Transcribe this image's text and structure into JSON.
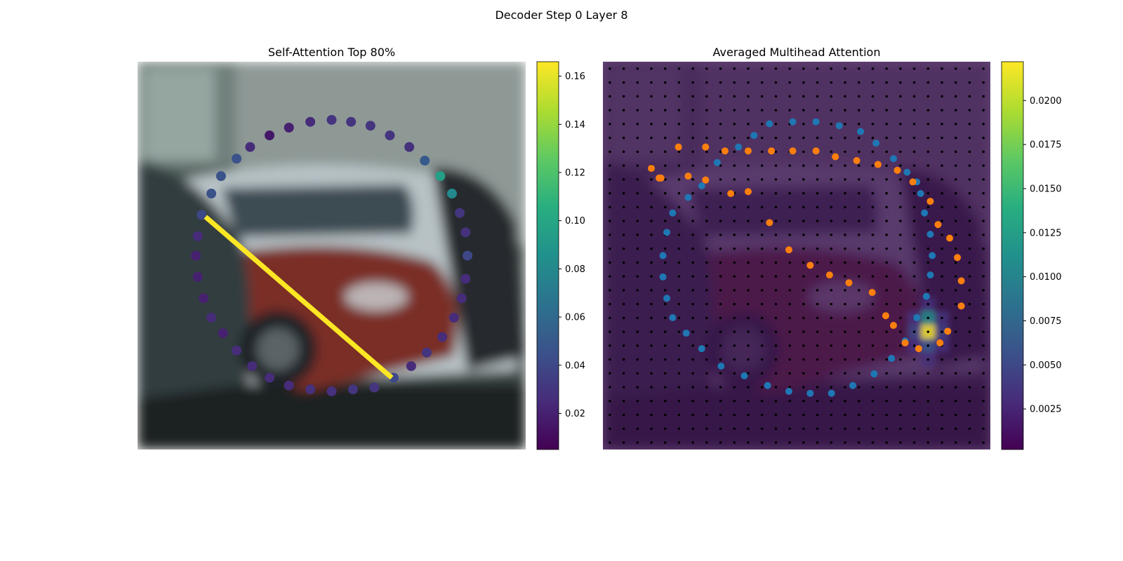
{
  "figure": {
    "title": "Decoder Step 0 Layer 8"
  },
  "chart_data": [
    {
      "type": "scatter",
      "title": "Self-Attention Top 80%",
      "background": "blurred photo of parked cars (red and white car, dark car at left)",
      "colormap": "viridis",
      "colorbar": {
        "min": 0.005,
        "max": 0.166,
        "ticks": [
          "0.02",
          "0.04",
          "0.06",
          "0.08",
          "0.10",
          "0.12",
          "0.14",
          "0.16"
        ],
        "tick_values": [
          0.02,
          0.04,
          0.06,
          0.08,
          0.1,
          0.12,
          0.14,
          0.16
        ]
      },
      "points": [
        {
          "x": 0.5,
          "y": 0.15,
          "v": 0.03
        },
        {
          "x": 0.55,
          "y": 0.155,
          "v": 0.03
        },
        {
          "x": 0.6,
          "y": 0.165,
          "v": 0.03
        },
        {
          "x": 0.65,
          "y": 0.19,
          "v": 0.03
        },
        {
          "x": 0.7,
          "y": 0.22,
          "v": 0.028
        },
        {
          "x": 0.74,
          "y": 0.255,
          "v": 0.05
        },
        {
          "x": 0.78,
          "y": 0.295,
          "v": 0.095
        },
        {
          "x": 0.81,
          "y": 0.34,
          "v": 0.08
        },
        {
          "x": 0.83,
          "y": 0.39,
          "v": 0.03
        },
        {
          "x": 0.845,
          "y": 0.44,
          "v": 0.028
        },
        {
          "x": 0.85,
          "y": 0.5,
          "v": 0.04
        },
        {
          "x": 0.845,
          "y": 0.56,
          "v": 0.025
        },
        {
          "x": 0.835,
          "y": 0.61,
          "v": 0.025
        },
        {
          "x": 0.815,
          "y": 0.66,
          "v": 0.025
        },
        {
          "x": 0.785,
          "y": 0.71,
          "v": 0.025
        },
        {
          "x": 0.745,
          "y": 0.75,
          "v": 0.03
        },
        {
          "x": 0.705,
          "y": 0.785,
          "v": 0.025
        },
        {
          "x": 0.66,
          "y": 0.815,
          "v": 0.04
        },
        {
          "x": 0.61,
          "y": 0.84,
          "v": 0.03
        },
        {
          "x": 0.555,
          "y": 0.845,
          "v": 0.03
        },
        {
          "x": 0.5,
          "y": 0.85,
          "v": 0.028
        },
        {
          "x": 0.445,
          "y": 0.845,
          "v": 0.028
        },
        {
          "x": 0.39,
          "y": 0.835,
          "v": 0.025
        },
        {
          "x": 0.34,
          "y": 0.815,
          "v": 0.025
        },
        {
          "x": 0.295,
          "y": 0.785,
          "v": 0.025
        },
        {
          "x": 0.255,
          "y": 0.745,
          "v": 0.025
        },
        {
          "x": 0.22,
          "y": 0.7,
          "v": 0.02
        },
        {
          "x": 0.19,
          "y": 0.66,
          "v": 0.025
        },
        {
          "x": 0.17,
          "y": 0.61,
          "v": 0.02
        },
        {
          "x": 0.155,
          "y": 0.555,
          "v": 0.02
        },
        {
          "x": 0.15,
          "y": 0.5,
          "v": 0.02
        },
        {
          "x": 0.155,
          "y": 0.45,
          "v": 0.025
        },
        {
          "x": 0.165,
          "y": 0.395,
          "v": 0.04
        },
        {
          "x": 0.19,
          "y": 0.34,
          "v": 0.045
        },
        {
          "x": 0.215,
          "y": 0.295,
          "v": 0.045
        },
        {
          "x": 0.255,
          "y": 0.25,
          "v": 0.045
        },
        {
          "x": 0.29,
          "y": 0.22,
          "v": 0.025
        },
        {
          "x": 0.34,
          "y": 0.19,
          "v": 0.015
        },
        {
          "x": 0.39,
          "y": 0.17,
          "v": 0.02
        },
        {
          "x": 0.445,
          "y": 0.155,
          "v": 0.025
        }
      ],
      "segment": {
        "from": [
          0.175,
          0.4
        ],
        "to": [
          0.655,
          0.815
        ],
        "v": 0.166
      }
    },
    {
      "type": "heatmap",
      "title": "Averaged Multihead Attention",
      "colormap": "viridis",
      "colorbar": {
        "min": 0.0002,
        "max": 0.0222,
        "ticks": [
          "0.0025",
          "0.0050",
          "0.0075",
          "0.0100",
          "0.0125",
          "0.0150",
          "0.0175",
          "0.0200"
        ],
        "tick_values": [
          0.0025,
          0.005,
          0.0075,
          0.01,
          0.0125,
          0.015,
          0.0175,
          0.02
        ]
      },
      "grid": {
        "cols": 28,
        "rows": 28
      },
      "hot_cells": [
        {
          "col": 23,
          "row": 18,
          "v": 0.011
        },
        {
          "col": 23,
          "row": 19,
          "v": 0.022
        },
        {
          "col": 22,
          "row": 19,
          "v": 0.005
        },
        {
          "col": 24,
          "row": 19,
          "v": 0.0045
        },
        {
          "col": 23,
          "row": 20,
          "v": 0.006
        },
        {
          "col": 22,
          "row": 18,
          "v": 0.0035
        },
        {
          "col": 24,
          "row": 18,
          "v": 0.0035
        },
        {
          "col": 22,
          "row": 20,
          "v": 0.0032
        },
        {
          "col": 24,
          "row": 20,
          "v": 0.003
        },
        {
          "col": 23,
          "row": 17,
          "v": 0.0032
        },
        {
          "col": 23,
          "row": 21,
          "v": 0.003
        }
      ],
      "series": [
        {
          "color": "#1f77b4",
          "points": [
            [
              0.43,
              0.16
            ],
            [
              0.49,
              0.155
            ],
            [
              0.55,
              0.155
            ],
            [
              0.61,
              0.165
            ],
            [
              0.665,
              0.18
            ],
            [
              0.705,
              0.21
            ],
            [
              0.75,
              0.25
            ],
            [
              0.785,
              0.285
            ],
            [
              0.81,
              0.31
            ],
            [
              0.82,
              0.34
            ],
            [
              0.83,
              0.39
            ],
            [
              0.845,
              0.445
            ],
            [
              0.85,
              0.5
            ],
            [
              0.845,
              0.55
            ],
            [
              0.835,
              0.605
            ],
            [
              0.81,
              0.66
            ],
            [
              0.78,
              0.72
            ],
            [
              0.745,
              0.765
            ],
            [
              0.7,
              0.805
            ],
            [
              0.645,
              0.835
            ],
            [
              0.59,
              0.855
            ],
            [
              0.535,
              0.855
            ],
            [
              0.48,
              0.85
            ],
            [
              0.425,
              0.835
            ],
            [
              0.365,
              0.81
            ],
            [
              0.305,
              0.785
            ],
            [
              0.255,
              0.74
            ],
            [
              0.215,
              0.7
            ],
            [
              0.18,
              0.66
            ],
            [
              0.165,
              0.61
            ],
            [
              0.155,
              0.555
            ],
            [
              0.155,
              0.5
            ],
            [
              0.165,
              0.44
            ],
            [
              0.18,
              0.39
            ],
            [
              0.22,
              0.35
            ],
            [
              0.255,
              0.32
            ],
            [
              0.295,
              0.26
            ],
            [
              0.35,
              0.22
            ],
            [
              0.39,
              0.19
            ]
          ]
        },
        {
          "color": "#ff7f0e",
          "points": [
            [
              0.125,
              0.275
            ],
            [
              0.145,
              0.3
            ],
            [
              0.195,
              0.22
            ],
            [
              0.265,
              0.22
            ],
            [
              0.315,
              0.23
            ],
            [
              0.375,
              0.23
            ],
            [
              0.435,
              0.23
            ],
            [
              0.49,
              0.23
            ],
            [
              0.55,
              0.23
            ],
            [
              0.6,
              0.245
            ],
            [
              0.655,
              0.255
            ],
            [
              0.71,
              0.265
            ],
            [
              0.76,
              0.28
            ],
            [
              0.8,
              0.31
            ],
            [
              0.845,
              0.36
            ],
            [
              0.865,
              0.42
            ],
            [
              0.895,
              0.455
            ],
            [
              0.915,
              0.505
            ],
            [
              0.925,
              0.565
            ],
            [
              0.925,
              0.63
            ],
            [
              0.89,
              0.695
            ],
            [
              0.87,
              0.725
            ],
            [
              0.815,
              0.74
            ],
            [
              0.78,
              0.725
            ],
            [
              0.75,
              0.68
            ],
            [
              0.73,
              0.655
            ],
            [
              0.695,
              0.595
            ],
            [
              0.635,
              0.57
            ],
            [
              0.585,
              0.55
            ],
            [
              0.535,
              0.525
            ],
            [
              0.48,
              0.485
            ],
            [
              0.43,
              0.415
            ],
            [
              0.375,
              0.335
            ],
            [
              0.33,
              0.34
            ],
            [
              0.265,
              0.305
            ],
            [
              0.22,
              0.295
            ],
            [
              0.15,
              0.3
            ]
          ]
        }
      ]
    }
  ]
}
